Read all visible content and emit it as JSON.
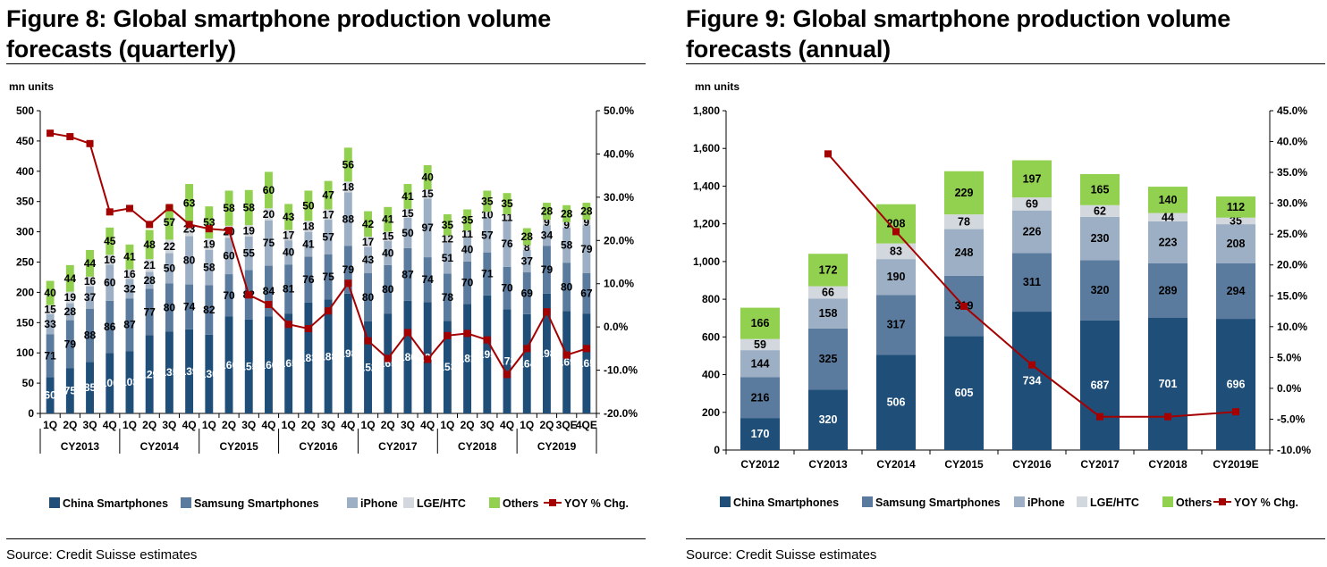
{
  "figures": [
    {
      "title": "Figure 8: Global smartphone production volume forecasts (quarterly)",
      "source": "Source: Credit Suisse estimates"
    },
    {
      "title": "Figure 9: Global smartphone production volume forecasts (annual)",
      "source": "Source: Credit Suisse estimates"
    }
  ],
  "colors": {
    "china": "#1f4e79",
    "samsung": "#5b7b9e",
    "iphone": "#9dafc4",
    "lge": "#d3d8de",
    "others": "#92d050",
    "yoy": "#a50000"
  },
  "chart_data": [
    {
      "type": "bar",
      "stacked": true,
      "unit_label": "mn units",
      "categories": [
        "1Q",
        "2Q",
        "3Q",
        "4Q",
        "1Q",
        "2Q",
        "3Q",
        "4Q",
        "1Q",
        "2Q",
        "3Q",
        "4Q",
        "1Q",
        "2Q",
        "3Q",
        "4Q",
        "1Q",
        "2Q",
        "3Q",
        "4Q",
        "1Q",
        "2Q",
        "3Q",
        "4Q",
        "1Q",
        "2Q",
        "3QE",
        "4QE"
      ],
      "groups": [
        "CY2013",
        "CY2014",
        "CY2015",
        "CY2016",
        "CY2017",
        "CY2018",
        "CY2019"
      ],
      "group_size": 4,
      "ylim": [
        0,
        500
      ],
      "yticks": [
        "0",
        "50",
        "100",
        "150",
        "200",
        "250",
        "300",
        "350",
        "400",
        "450",
        "500"
      ],
      "y2lim": [
        -20,
        50
      ],
      "y2ticks": [
        "-20.0%",
        "-10.0%",
        "0.0%",
        "10.0%",
        "20.0%",
        "30.0%",
        "40.0%",
        "50.0%"
      ],
      "series": [
        {
          "name": "China Smartphones",
          "values": [
            60,
            75,
            85,
            100,
            103,
            129,
            135,
            139,
            130,
            160,
            155,
            160,
            165,
            183,
            188,
            198,
            152,
            165,
            186,
            184,
            153,
            181,
            195,
            172,
            164,
            198,
            169,
            165
          ]
        },
        {
          "name": "Samsung Smartphones",
          "values": [
            71,
            79,
            88,
            86,
            87,
            77,
            80,
            74,
            82,
            70,
            82,
            84,
            81,
            76,
            75,
            79,
            80,
            80,
            87,
            74,
            78,
            70,
            71,
            70,
            69,
            79,
            80,
            67
          ]
        },
        {
          "name": "iPhone",
          "values": [
            33,
            28,
            37,
            60,
            32,
            28,
            50,
            80,
            58,
            60,
            55,
            75,
            40,
            41,
            57,
            88,
            43,
            40,
            50,
            97,
            51,
            40,
            57,
            76,
            37,
            34,
            58,
            79
          ]
        },
        {
          "name": "LGE/HTC",
          "values": [
            15,
            19,
            16,
            16,
            16,
            21,
            22,
            23,
            19,
            20,
            19,
            20,
            17,
            18,
            17,
            18,
            17,
            15,
            15,
            15,
            12,
            11,
            10,
            11,
            8,
            9,
            9,
            9
          ]
        },
        {
          "name": "Others",
          "values": [
            40,
            44,
            44,
            45,
            41,
            48,
            57,
            63,
            53,
            58,
            58,
            60,
            43,
            50,
            47,
            56,
            42,
            41,
            41,
            40,
            35,
            35,
            35,
            35,
            28,
            28,
            28,
            28
          ]
        }
      ],
      "line_series": {
        "name": "YOY % Chg.",
        "values": [
          44.8,
          44.0,
          42.4,
          26.6,
          27.4,
          23.7,
          27.6,
          23.7,
          22.7,
          22.3,
          7.4,
          5.2,
          0.6,
          -0.4,
          3.7,
          10.1,
          -3.2,
          -7.3,
          -1.3,
          -7.5,
          -2.0,
          -1.5,
          -3.0,
          -11.0,
          -5.0,
          3.5,
          -6.5,
          -5.0
        ]
      },
      "legend_placement": "bottom",
      "legend": [
        "China Smartphones",
        "Samsung Smartphones",
        "iPhone",
        "LGE/HTC",
        "Others",
        "YOY % Chg."
      ],
      "grid": false
    },
    {
      "type": "bar",
      "stacked": true,
      "unit_label": "mn units",
      "categories": [
        "CY2012",
        "CY2013",
        "CY2014",
        "CY2015",
        "CY2016",
        "CY2017",
        "CY2018",
        "CY2019E"
      ],
      "ylim": [
        0,
        1800
      ],
      "yticks": [
        "0",
        "200",
        "400",
        "600",
        "800",
        "1,000",
        "1,200",
        "1,400",
        "1,600",
        "1,800"
      ],
      "y2lim": [
        -10,
        45
      ],
      "y2ticks": [
        "-10.0%",
        "-5.0%",
        "0.0%",
        "5.0%",
        "10.0%",
        "15.0%",
        "20.0%",
        "25.0%",
        "30.0%",
        "35.0%",
        "40.0%",
        "45.0%"
      ],
      "series": [
        {
          "name": "China Smartphones",
          "values": [
            170,
            320,
            506,
            605,
            734,
            687,
            701,
            696
          ]
        },
        {
          "name": "Samsung Smartphones",
          "values": [
            216,
            325,
            317,
            319,
            311,
            320,
            289,
            294
          ]
        },
        {
          "name": "iPhone",
          "values": [
            144,
            158,
            190,
            248,
            226,
            230,
            223,
            208
          ]
        },
        {
          "name": "LGE/HTC",
          "values": [
            59,
            66,
            83,
            78,
            69,
            62,
            44,
            35
          ]
        },
        {
          "name": "Others",
          "values": [
            166,
            172,
            208,
            229,
            197,
            165,
            140,
            112
          ]
        }
      ],
      "line_series": {
        "name": "YOY % Chg.",
        "values": [
          null,
          38.0,
          25.4,
          13.3,
          3.8,
          -4.6,
          -4.6,
          -3.8
        ]
      },
      "legend_placement": "bottom",
      "legend": [
        "China Smartphones",
        "Samsung Smartphones",
        "iPhone",
        "LGE/HTC",
        "Others",
        "YOY % Chg."
      ],
      "grid": false
    }
  ]
}
